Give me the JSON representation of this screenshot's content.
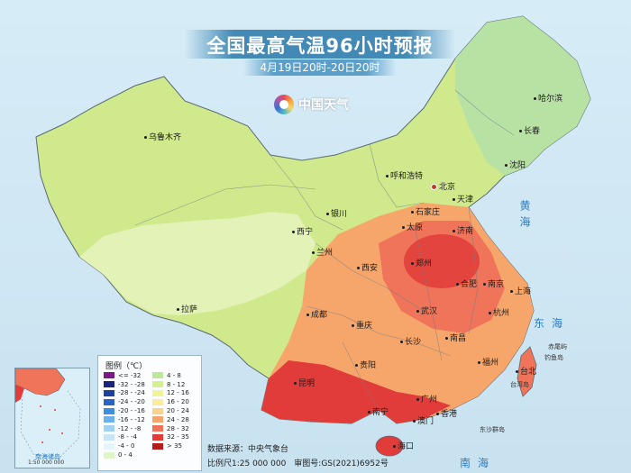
{
  "header": {
    "title": "全国最高气温96小时预报",
    "subtitle": "4月19日20时-20日20时"
  },
  "brand": {
    "logo_text": "中国天气"
  },
  "cities": [
    {
      "name": "乌鲁木齐",
      "capital": false
    },
    {
      "name": "哈尔滨",
      "capital": false
    },
    {
      "name": "长春",
      "capital": false
    },
    {
      "name": "沈阳",
      "capital": false
    },
    {
      "name": "呼和浩特",
      "capital": false
    },
    {
      "name": "北京",
      "capital": true
    },
    {
      "name": "天津",
      "capital": false
    },
    {
      "name": "石家庄",
      "capital": false
    },
    {
      "name": "太原",
      "capital": false
    },
    {
      "name": "银川",
      "capital": false
    },
    {
      "name": "济南",
      "capital": false
    },
    {
      "name": "西宁",
      "capital": false
    },
    {
      "name": "兰州",
      "capital": false
    },
    {
      "name": "郑州",
      "capital": false
    },
    {
      "name": "西安",
      "capital": false
    },
    {
      "name": "南京",
      "capital": false
    },
    {
      "name": "合肥",
      "capital": false
    },
    {
      "name": "上海",
      "capital": false
    },
    {
      "name": "拉萨",
      "capital": false
    },
    {
      "name": "成都",
      "capital": false
    },
    {
      "name": "武汉",
      "capital": false
    },
    {
      "name": "杭州",
      "capital": false
    },
    {
      "name": "重庆",
      "capital": false
    },
    {
      "name": "长沙",
      "capital": false
    },
    {
      "name": "南昌",
      "capital": false
    },
    {
      "name": "贵阳",
      "capital": false
    },
    {
      "name": "福州",
      "capital": false
    },
    {
      "name": "台北",
      "capital": false
    },
    {
      "name": "昆明",
      "capital": false
    },
    {
      "name": "广州",
      "capital": false
    },
    {
      "name": "南宁",
      "capital": false
    },
    {
      "name": "香港",
      "capital": false
    },
    {
      "name": "澳门",
      "capital": false
    },
    {
      "name": "海口",
      "capital": false
    }
  ],
  "seas": {
    "yellow_sea": "黄海",
    "east_sea": "东海",
    "south_sea": "南海"
  },
  "islands": {
    "chiwei": "赤尾屿",
    "diaoyu": "钓鱼岛",
    "taiwan": "台湾岛",
    "dongsha": "东沙群岛"
  },
  "inset": {
    "name": "南海诸岛",
    "scale": "1:50 000 000"
  },
  "legend": {
    "title": "图例（℃）",
    "items": [
      {
        "label": "<= -32",
        "color": "#7b1a86"
      },
      {
        "label": "4 - 8",
        "color": "#bde89a"
      },
      {
        "label": "-32 - -28",
        "color": "#1a237e"
      },
      {
        "label": "8 - 12",
        "color": "#d7f08f"
      },
      {
        "label": "-28 - -24",
        "color": "#1e40a0"
      },
      {
        "label": "12 - 16",
        "color": "#eef59a"
      },
      {
        "label": "-24 - -20",
        "color": "#2a63c6"
      },
      {
        "label": "16 - 20",
        "color": "#fbeaa0"
      },
      {
        "label": "-20 - -16",
        "color": "#3e8ee0"
      },
      {
        "label": "20 - 24",
        "color": "#fbd38c"
      },
      {
        "label": "-16 - -12",
        "color": "#6ab1ec"
      },
      {
        "label": "24 - 28",
        "color": "#f7a66b"
      },
      {
        "label": "-12 - -8",
        "color": "#9fd2f3"
      },
      {
        "label": "28 - 32",
        "color": "#ef7459"
      },
      {
        "label": "-8 - -4",
        "color": "#c6e6f7"
      },
      {
        "label": "32 - 35",
        "color": "#e23c3a"
      },
      {
        "label": "-4 - 0",
        "color": "#e6f5fb"
      },
      {
        "label": "> 35",
        "color": "#b71c1c"
      },
      {
        "label": "0 - 4",
        "color": "#dff4c8"
      }
    ]
  },
  "footer": {
    "source": "数据来源：中央气象台",
    "scale": "比例尺1:25 000 000　审图号:GS(2021)6952号"
  }
}
